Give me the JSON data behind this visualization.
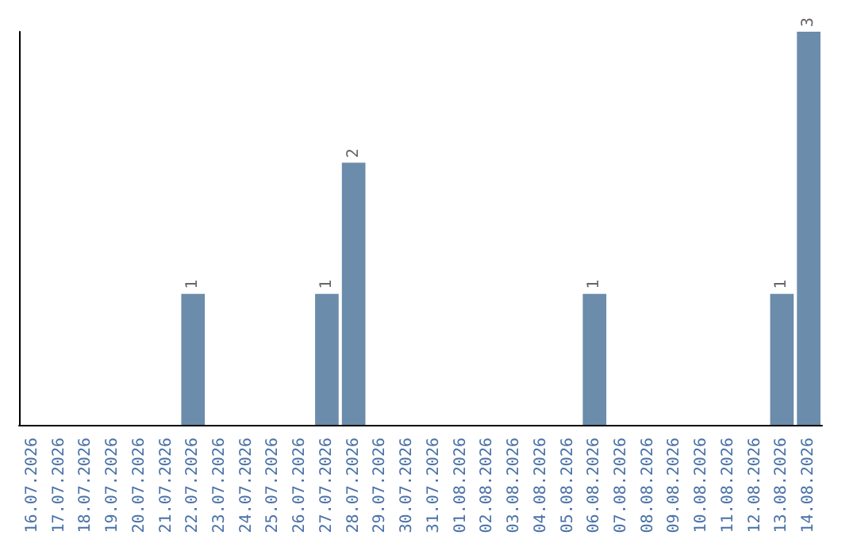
{
  "chart_data": {
    "type": "bar",
    "categories": [
      "16.07.2026",
      "17.07.2026",
      "18.07.2026",
      "19.07.2026",
      "20.07.2026",
      "21.07.2026",
      "22.07.2026",
      "23.07.2026",
      "24.07.2026",
      "25.07.2026",
      "26.07.2026",
      "27.07.2026",
      "28.07.2026",
      "29.07.2026",
      "30.07.2026",
      "31.07.2026",
      "01.08.2026",
      "02.08.2026",
      "03.08.2026",
      "04.08.2026",
      "05.08.2026",
      "06.08.2026",
      "07.08.2026",
      "08.08.2026",
      "09.08.2026",
      "10.08.2026",
      "11.08.2026",
      "12.08.2026",
      "13.08.2026",
      "14.08.2026"
    ],
    "values": [
      0,
      0,
      0,
      0,
      0,
      0,
      1,
      0,
      0,
      0,
      0,
      1,
      2,
      0,
      0,
      0,
      0,
      0,
      0,
      0,
      0,
      1,
      0,
      0,
      0,
      0,
      0,
      0,
      1,
      3
    ],
    "value_labels": [
      null,
      null,
      null,
      null,
      null,
      null,
      "1",
      null,
      null,
      null,
      null,
      "1",
      "2",
      null,
      null,
      null,
      null,
      null,
      null,
      null,
      null,
      "1",
      null,
      null,
      null,
      null,
      null,
      null,
      "1",
      "3"
    ],
    "color": "#6b8cab",
    "grid": false,
    "tick_labels": "x"
  }
}
